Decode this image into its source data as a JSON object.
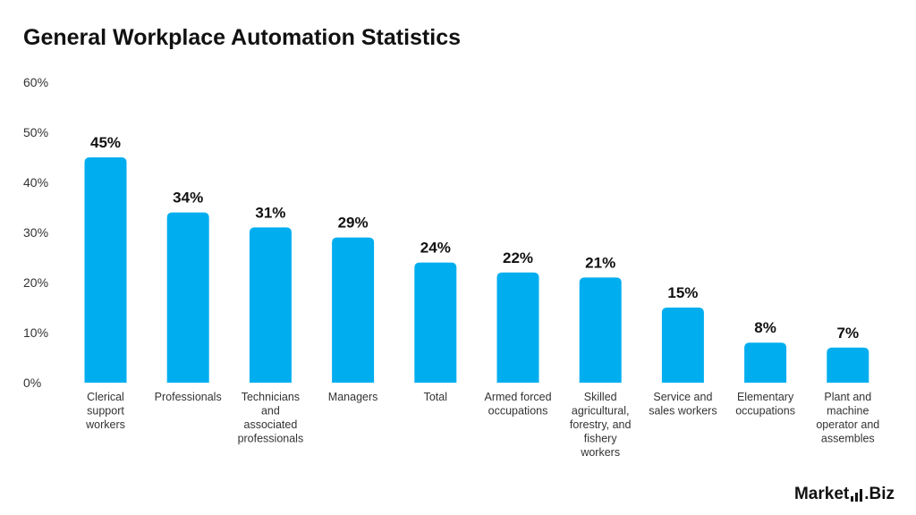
{
  "brand": {
    "left": "Market",
    "right": ".Biz"
  },
  "chart_data": {
    "type": "bar",
    "title": "General Workplace Automation Statistics",
    "xlabel": "",
    "ylabel": "",
    "ylim": [
      0,
      60
    ],
    "yticks": [
      0,
      10,
      20,
      30,
      40,
      50,
      60
    ],
    "ytick_labels": [
      "0%",
      "10%",
      "20%",
      "30%",
      "40%",
      "50%",
      "60%"
    ],
    "categories": [
      "Clerical support workers",
      "Professionals",
      "Technicians and associated professionals",
      "Managers",
      "Total",
      "Armed forced occupations",
      "Skilled agricultural, forestry, and fishery workers",
      "Service and sales workers",
      "Elementary occupations",
      "Plant and machine operator and assembles"
    ],
    "category_lines": [
      [
        "Clerical",
        "support",
        "workers"
      ],
      [
        "Professionals"
      ],
      [
        "Technicians",
        "and",
        "associated",
        "professionals"
      ],
      [
        "Managers"
      ],
      [
        "Total"
      ],
      [
        "Armed forced",
        "occupations"
      ],
      [
        "Skilled",
        "agricultural,",
        "forestry, and",
        "fishery",
        "workers"
      ],
      [
        "Service and",
        "sales workers"
      ],
      [
        "Elementary",
        "occupations"
      ],
      [
        "Plant and",
        "machine",
        "operator and",
        "assembles"
      ]
    ],
    "values": [
      45,
      34,
      31,
      29,
      24,
      22,
      21,
      15,
      8,
      7
    ],
    "value_labels": [
      "45%",
      "34%",
      "31%",
      "29%",
      "24%",
      "22%",
      "21%",
      "15%",
      "8%",
      "7%"
    ],
    "bar_color": "#00aeef",
    "grid": false,
    "legend": "none"
  }
}
